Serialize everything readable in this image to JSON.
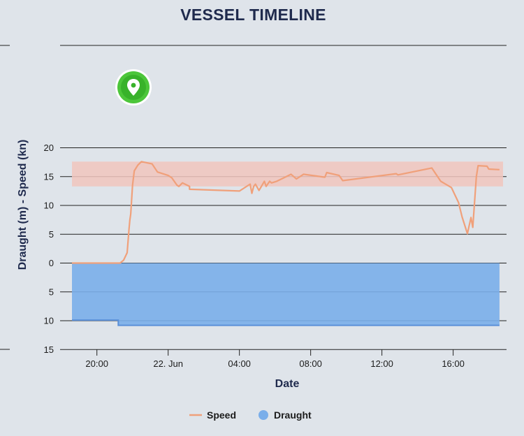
{
  "title": "VESSEL TIMELINE",
  "colors": {
    "speed": "#f0a07a",
    "speed_band": "#f1c6bd",
    "draught_fill": "#7aaeea",
    "draught_line": "#5a8fd8",
    "marker": "#4cc63a",
    "text": "#1f2a4d"
  },
  "marker_icon": "map-pin-icon",
  "chart_data": {
    "type": "line",
    "xlabel": "Date",
    "ylabel": "Draught (m) - Speed (kn)",
    "x_range_hours": [
      -5.4,
      18.8
    ],
    "x_ticks": [
      {
        "label": "20:00",
        "hour": -4
      },
      {
        "label": "22. Jun",
        "hour": 0
      },
      {
        "label": "04:00",
        "hour": 4
      },
      {
        "label": "08:00",
        "hour": 8
      },
      {
        "label": "12:00",
        "hour": 12
      },
      {
        "label": "16:00",
        "hour": 16
      }
    ],
    "y_ticks": [
      {
        "label": "20",
        "value": 20
      },
      {
        "label": "15",
        "value": 15
      },
      {
        "label": "10",
        "value": 10
      },
      {
        "label": "5",
        "value": 5
      },
      {
        "label": "0",
        "value": 0
      },
      {
        "label": "5",
        "value": -5
      },
      {
        "label": "10",
        "value": -10
      },
      {
        "label": "15",
        "value": -15
      }
    ],
    "ylim": [
      -15,
      20
    ],
    "speed_band": [
      13.3,
      17.6
    ],
    "series": [
      {
        "name": "Speed",
        "type": "line",
        "points": [
          [
            -5.4,
            0
          ],
          [
            -2.7,
            0
          ],
          [
            -2.5,
            0.5
          ],
          [
            -2.3,
            1.8
          ],
          [
            -2.2,
            5.8
          ],
          [
            -2.15,
            7.5
          ],
          [
            -2.1,
            8.5
          ],
          [
            -2.0,
            13.5
          ],
          [
            -1.9,
            16
          ],
          [
            -1.7,
            17.0
          ],
          [
            -1.5,
            17.6
          ],
          [
            -0.9,
            17.2
          ],
          [
            -0.6,
            15.8
          ],
          [
            0.0,
            15.2
          ],
          [
            0.2,
            14.8
          ],
          [
            0.5,
            13.5
          ],
          [
            0.6,
            13.3
          ],
          [
            0.8,
            13.9
          ],
          [
            1.2,
            13.3
          ],
          [
            1.2,
            12.8
          ],
          [
            4.0,
            12.5
          ],
          [
            4.6,
            13.7
          ],
          [
            4.7,
            12.1
          ],
          [
            4.8,
            13.3
          ],
          [
            4.9,
            13.7
          ],
          [
            5.1,
            12.6
          ],
          [
            5.4,
            14.2
          ],
          [
            5.5,
            13.3
          ],
          [
            5.7,
            14.2
          ],
          [
            5.8,
            13.9
          ],
          [
            6.1,
            14.2
          ],
          [
            6.9,
            15.4
          ],
          [
            7.2,
            14.6
          ],
          [
            7.4,
            15.0
          ],
          [
            7.6,
            15.4
          ],
          [
            8.8,
            14.9
          ],
          [
            8.9,
            15.7
          ],
          [
            9.6,
            15.2
          ],
          [
            9.8,
            14.3
          ],
          [
            12.8,
            15.5
          ],
          [
            12.9,
            15.3
          ],
          [
            14.8,
            16.5
          ],
          [
            15.3,
            14.2
          ],
          [
            15.9,
            13.1
          ],
          [
            16.3,
            10.5
          ],
          [
            16.5,
            8.0
          ],
          [
            16.8,
            5.1
          ],
          [
            17.0,
            7.9
          ],
          [
            17.1,
            6.2
          ],
          [
            17.3,
            15.0
          ],
          [
            17.4,
            16.9
          ],
          [
            17.9,
            16.8
          ],
          [
            18.0,
            16.3
          ],
          [
            18.6,
            16.2
          ]
        ]
      },
      {
        "name": "Draught",
        "type": "area",
        "points": [
          [
            -5.4,
            -9.9
          ],
          [
            -2.8,
            -9.9
          ],
          [
            -2.8,
            -10.8
          ],
          [
            18.6,
            -10.8
          ]
        ]
      }
    ],
    "legend_position": "bottom-center",
    "grid": true
  }
}
